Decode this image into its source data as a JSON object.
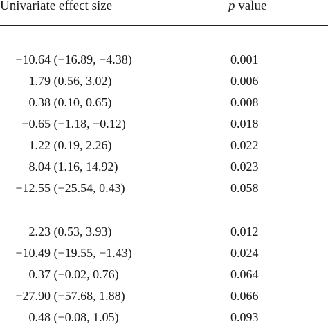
{
  "table": {
    "header": {
      "effect_label": "Univariate effect size",
      "p_symbol": "p",
      "p_label": " value"
    },
    "group1": [
      {
        "estimate": "−10.64",
        "ci": "(−16.89, −4.38)",
        "p": "0.001"
      },
      {
        "estimate": "1.79",
        "ci": "(0.56, 3.02)",
        "p": "0.006"
      },
      {
        "estimate": "0.38",
        "ci": "(0.10, 0.65)",
        "p": "0.008"
      },
      {
        "estimate": "−0.65",
        "ci": "(−1.18, −0.12)",
        "p": "0.018"
      },
      {
        "estimate": "1.22",
        "ci": "(0.19, 2.26)",
        "p": "0.022"
      },
      {
        "estimate": "8.04",
        "ci": "(1.16, 14.92)",
        "p": "0.023"
      },
      {
        "estimate": "−12.55",
        "ci": "(−25.54, 0.43)",
        "p": "0.058"
      }
    ],
    "group2": [
      {
        "estimate": "2.23",
        "ci": "(0.53, 3.93)",
        "p": "0.012"
      },
      {
        "estimate": "−10.49",
        "ci": "(−19.55, −1.43)",
        "p": "0.024"
      },
      {
        "estimate": "0.37",
        "ci": "(−0.02, 0.76)",
        "p": "0.064"
      },
      {
        "estimate": "−27.90",
        "ci": "(−57.68, 1.88)",
        "p": "0.066"
      },
      {
        "estimate": "0.48",
        "ci": "(−0.08, 1.05)",
        "p": "0.093"
      }
    ]
  }
}
